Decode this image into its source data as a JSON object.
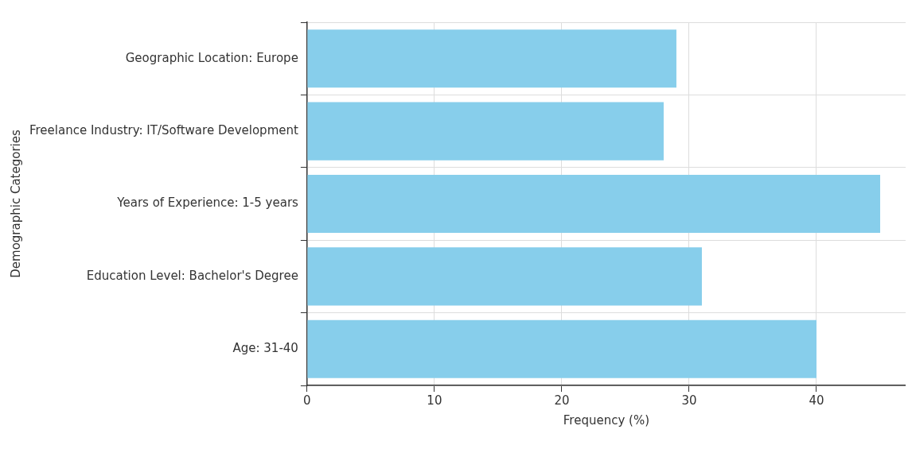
{
  "chart_data": {
    "type": "bar",
    "orientation": "horizontal",
    "xlabel": "Frequency (%)",
    "ylabel": "Demographic Categories",
    "categories": [
      "Geographic Location: Europe",
      "Freelance Industry: IT/Software Development",
      "Years of Experience: 1-5 years",
      "Education Level: Bachelor's Degree",
      "Age: 31-40"
    ],
    "values": [
      29,
      28,
      45,
      31,
      40
    ],
    "color": "#87ceeb",
    "xlim": [
      0,
      47
    ],
    "xticks": [
      0,
      10,
      20,
      30,
      40
    ],
    "grid": true,
    "legend": false
  }
}
